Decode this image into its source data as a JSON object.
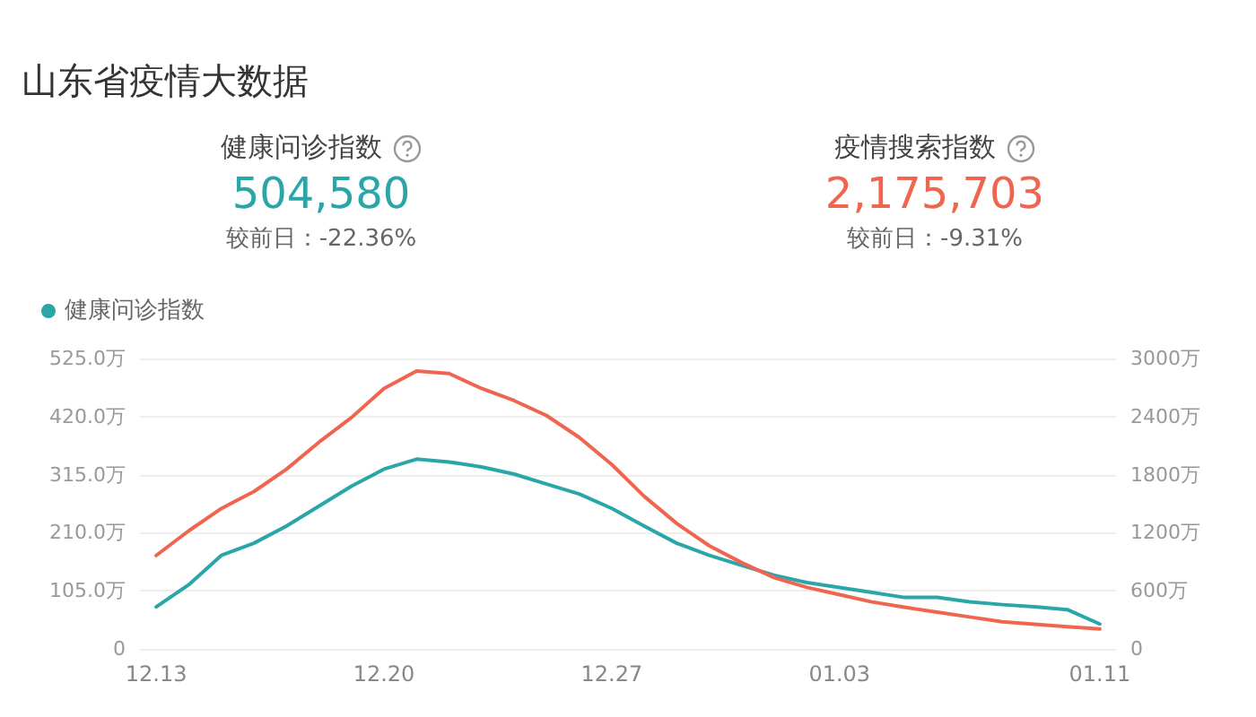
{
  "chart_data": {
    "type": "line",
    "title": "山东省疫情大数据",
    "annotations": [
      "健康问诊指数",
      "504,580",
      "较前日：-22.36%",
      "疫情搜索指数",
      "2,175,703",
      "较前日：-9.31%"
    ],
    "categories": [
      "12.13",
      null,
      null,
      null,
      null,
      null,
      null,
      "12.20",
      null,
      null,
      null,
      null,
      null,
      null,
      "12.27",
      null,
      null,
      null,
      null,
      null,
      null,
      "01.03",
      null,
      null,
      null,
      null,
      null,
      null,
      null,
      "01.11"
    ],
    "series": [
      {
        "name": "健康问诊指数",
        "color": "#2aa5a8",
        "values": [
          76,
          116,
          169,
          191,
          222,
          258,
          294,
          325,
          343,
          338,
          329,
          316,
          298,
          280,
          254,
          222,
          191,
          169,
          151,
          133,
          120,
          111,
          102,
          93,
          93,
          85,
          80,
          76,
          71,
          45
        ]
      },
      {
        "color": "#f0654f",
        "axis": "y2",
        "values": [
          965,
          1220,
          1450,
          1625,
          1855,
          2135,
          2390,
          2690,
          2870,
          2845,
          2690,
          2565,
          2410,
          2185,
          1905,
          1575,
          1295,
          1065,
          890,
          735,
          635,
          560,
          485,
          430,
          380,
          330,
          280,
          255,
          230,
          205
        ]
      }
    ],
    "ylim": [
      0,
      525
    ],
    "yticks": [
      0,
      {
        "value": 105,
        "label": "105.0万"
      },
      {
        "value": 210,
        "label": "210.0万"
      },
      {
        "value": 315,
        "label": "315.0万"
      },
      {
        "value": 420,
        "label": "420.0万"
      },
      {
        "value": 525,
        "label": "525.0万"
      }
    ],
    "y2lim": [
      0,
      3000
    ],
    "y2ticks": [
      0,
      {
        "value": 600,
        "label": "600万"
      },
      {
        "value": 1200,
        "label": "1200万"
      },
      {
        "value": 1800,
        "label": "1800万"
      },
      {
        "value": 2400,
        "label": "2400万"
      },
      {
        "value": 3000,
        "label": "3000万"
      }
    ],
    "grid": "y",
    "legend": "top left",
    "marker": "none",
    "line_style": "solid"
  }
}
